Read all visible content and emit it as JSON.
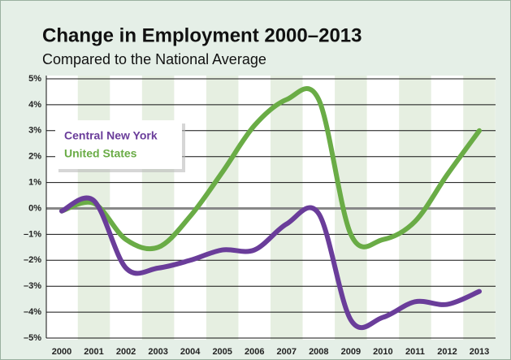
{
  "chart_data": {
    "type": "line",
    "title": "Change in Employment 2000–2013",
    "subtitle": "Compared to the National Average",
    "categories": [
      "2000",
      "2001",
      "2002",
      "2003",
      "2004",
      "2005",
      "2006",
      "2007",
      "2008",
      "2009",
      "2010",
      "2011",
      "2012",
      "2013"
    ],
    "series": [
      {
        "name": "Central New York",
        "color": "#6a3d9a",
        "values": [
          -0.1,
          0.3,
          -2.3,
          -2.3,
          -2.0,
          -1.6,
          -1.6,
          -0.6,
          -0.2,
          -4.3,
          -4.2,
          -3.6,
          -3.7,
          -3.2
        ]
      },
      {
        "name": "United States",
        "color": "#6aac46",
        "values": [
          -0.1,
          0.2,
          -1.2,
          -1.5,
          -0.3,
          1.4,
          3.2,
          4.2,
          4.2,
          -1.0,
          -1.2,
          -0.5,
          1.3,
          3.0
        ]
      }
    ],
    "ylim": [
      -5,
      5
    ],
    "yticks": [
      {
        "value": -5,
        "label": "–5%"
      },
      {
        "value": -4,
        "label": "–4%"
      },
      {
        "value": -3,
        "label": "–3%"
      },
      {
        "value": -2,
        "label": "–2%"
      },
      {
        "value": -1,
        "label": "–1%"
      },
      {
        "value": 0,
        "label": "0%"
      },
      {
        "value": 1,
        "label": "1%"
      },
      {
        "value": 2,
        "label": "2%"
      },
      {
        "value": 3,
        "label": "3%"
      },
      {
        "value": 4,
        "label": "4%"
      },
      {
        "value": 5,
        "label": "5%"
      }
    ],
    "grid": true,
    "legend": "upper left"
  }
}
